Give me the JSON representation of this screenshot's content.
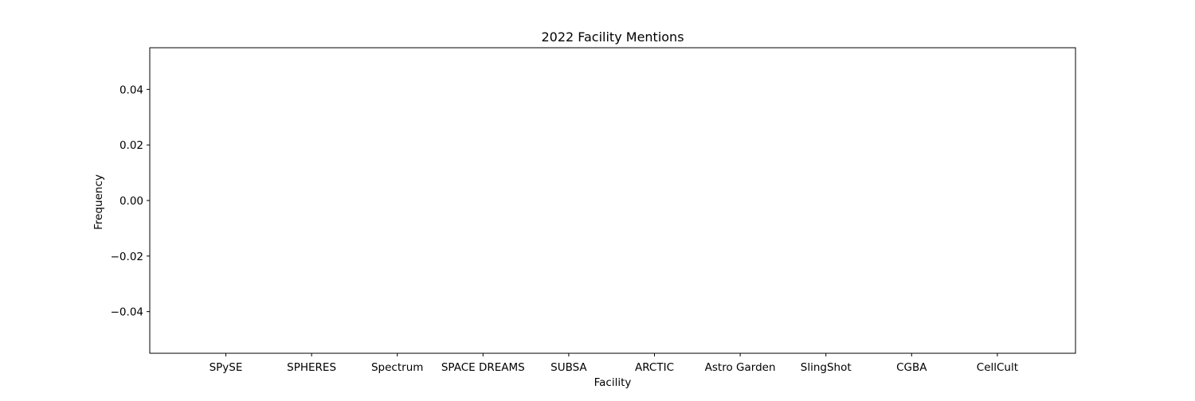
{
  "chart_data": {
    "type": "bar",
    "title": "2022 Facility Mentions",
    "xlabel": "Facility",
    "ylabel": "Frequency",
    "categories": [
      "SPySE",
      "SPHERES",
      "Spectrum",
      "SPACE DREAMS",
      "SUBSA",
      "ARCTIC",
      "Astro Garden",
      "SlingShot",
      "CGBA",
      "CellCult"
    ],
    "values": [
      0,
      0,
      0,
      0,
      0,
      0,
      0,
      0,
      0,
      0
    ],
    "ylim": [
      -0.055,
      0.055
    ],
    "yticks": [
      0.04,
      0.02,
      0.0,
      -0.02,
      -0.04
    ],
    "ytick_labels": [
      "0.04",
      "0.02",
      "0.00",
      "−0.02",
      "−0.04"
    ],
    "grid": false,
    "bar_color": "#1f77b4"
  }
}
